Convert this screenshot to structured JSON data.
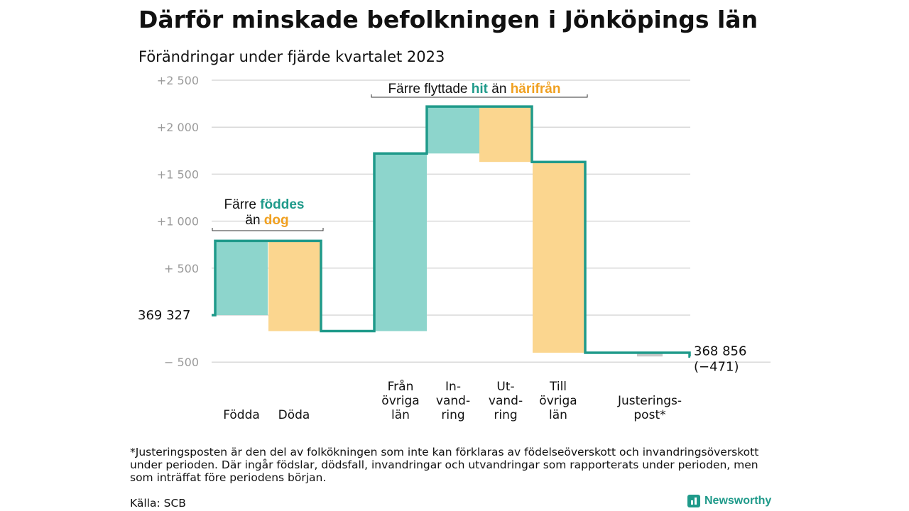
{
  "title": "Därför minskade befolkningen i Jönköpings län",
  "subtitle": "Förändringar under fjärde kvartalet 2023",
  "footnote": "*Justeringsposten är den del av folkökningen som inte kan förklaras av födelseöverskott och invandringsöverskott under perioden. Där ingår födslar, dödsfall, invandringar och utvandringar som rapporterats under perioden, men som inträffat före periodens början.",
  "source": "Källa: SCB",
  "brand": "Newsworthy",
  "colors": {
    "teal": "#1f9a8a",
    "teal_fill": "#8dd5cc",
    "orange_fill": "#fbd68f",
    "orange_text": "#f0a020",
    "grid": "#d9d9d9",
    "tick": "#9a9a9a",
    "adjust": "#c8c8c8"
  },
  "chart_data": {
    "type": "waterfall",
    "start_label": "369 327",
    "end_label_value": "368 856",
    "end_label_change": "(−471)",
    "ylim": [
      -500,
      2500
    ],
    "y_ticks": [
      {
        "value": -500,
        "label": "− 500"
      },
      {
        "value": 0,
        "label": ""
      },
      {
        "value": 500,
        "label": "+ 500"
      },
      {
        "value": 1000,
        "label": "+1 000"
      },
      {
        "value": 1500,
        "label": "+1 500"
      },
      {
        "value": 2000,
        "label": "+2 000"
      },
      {
        "value": 2500,
        "label": "+2 500"
      }
    ],
    "bars": [
      {
        "label": "Födda",
        "change": 790,
        "kind": "inflow"
      },
      {
        "label": "Döda",
        "change": -960,
        "kind": "outflow"
      },
      {
        "label": "Från övriga län",
        "change": 1890,
        "kind": "inflow"
      },
      {
        "label": "In-vand-ring",
        "change": 500,
        "kind": "inflow"
      },
      {
        "label": "Ut-vand-ring",
        "change": -590,
        "kind": "outflow"
      },
      {
        "label": "Till övriga län",
        "change": -2030,
        "kind": "outflow"
      },
      {
        "label": "Justerings-post*",
        "change": -40,
        "kind": "adjust"
      }
    ],
    "category_lines": [
      [
        "Födda"
      ],
      [
        "Döda"
      ],
      [
        "Från",
        "övriga",
        "län"
      ],
      [
        "In-",
        "vand-",
        "ring"
      ],
      [
        "Ut-",
        "vand-",
        "ring"
      ],
      [
        "Till",
        "övriga",
        "län"
      ],
      [
        "Justerings-",
        "post*"
      ]
    ],
    "annotations": [
      {
        "parts": [
          [
            "Färre ",
            "dark"
          ],
          [
            "föddes",
            "teal"
          ],
          [
            "än ",
            "dark"
          ],
          [
            "dog",
            "orange"
          ]
        ]
      },
      {
        "parts": [
          [
            "Färre flyttade ",
            "dark"
          ],
          [
            "hit",
            "teal"
          ],
          [
            " än ",
            "dark"
          ],
          [
            "härifrån",
            "orange"
          ]
        ]
      }
    ]
  }
}
